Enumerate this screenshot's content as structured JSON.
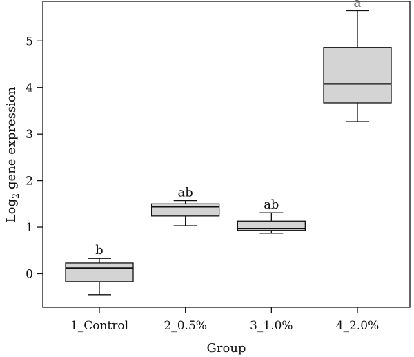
{
  "chart_data": {
    "type": "box",
    "xlabel": "Group",
    "ylabel_main": "Log",
    "ylabel_sub": "2",
    "ylabel_rest": " gene expression",
    "ylim": [
      -0.72,
      5.85
    ],
    "yticks": [
      0,
      1,
      2,
      3,
      4,
      5
    ],
    "ytick_labels": [
      "0",
      "1",
      "2",
      "3",
      "4",
      "5"
    ],
    "grid": false,
    "box_color": "#d4d4d4",
    "categories": [
      "1_Control",
      "2_0.5%",
      "3_1.0%",
      "4_2.0%"
    ],
    "boxes": [
      {
        "category": "1_Control",
        "whisker_low": -0.45,
        "q1": -0.17,
        "median": 0.12,
        "q3": 0.23,
        "whisker_high": 0.33,
        "label": "b"
      },
      {
        "category": "2_0.5%",
        "whisker_low": 1.03,
        "q1": 1.24,
        "median": 1.44,
        "q3": 1.5,
        "whisker_high": 1.57,
        "label": "ab"
      },
      {
        "category": "3_1.0%",
        "whisker_low": 0.87,
        "q1": 0.93,
        "median": 0.97,
        "q3": 1.13,
        "whisker_high": 1.31,
        "label": "ab"
      },
      {
        "category": "4_2.0%",
        "whisker_low": 3.27,
        "q1": 3.67,
        "median": 4.08,
        "q3": 4.86,
        "whisker_high": 5.65,
        "label": "a"
      }
    ]
  }
}
